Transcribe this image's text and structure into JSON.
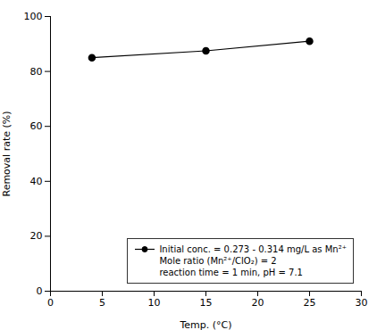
{
  "chart_data": {
    "type": "line",
    "x": [
      4,
      15,
      25
    ],
    "series": [
      {
        "name": "Initial conc. = 0.273 - 0.314 mg/L as Mn²⁺\nMole ratio (Mn²⁺/ClO₂) = 2\nreaction time = 1 min, pH = 7.1",
        "color": "#000000",
        "marker": "circle",
        "values": [
          85,
          87.5,
          91
        ]
      }
    ],
    "xlabel": "Temp. (°C)",
    "ylabel": "Removal rate (%)",
    "xlim": [
      0,
      30
    ],
    "ylim": [
      0,
      100
    ],
    "xticks": [
      0,
      5,
      10,
      15,
      20,
      25,
      30
    ],
    "yticks": [
      0,
      20,
      40,
      60,
      80,
      100
    ],
    "grid": false,
    "legend": "lower right"
  }
}
